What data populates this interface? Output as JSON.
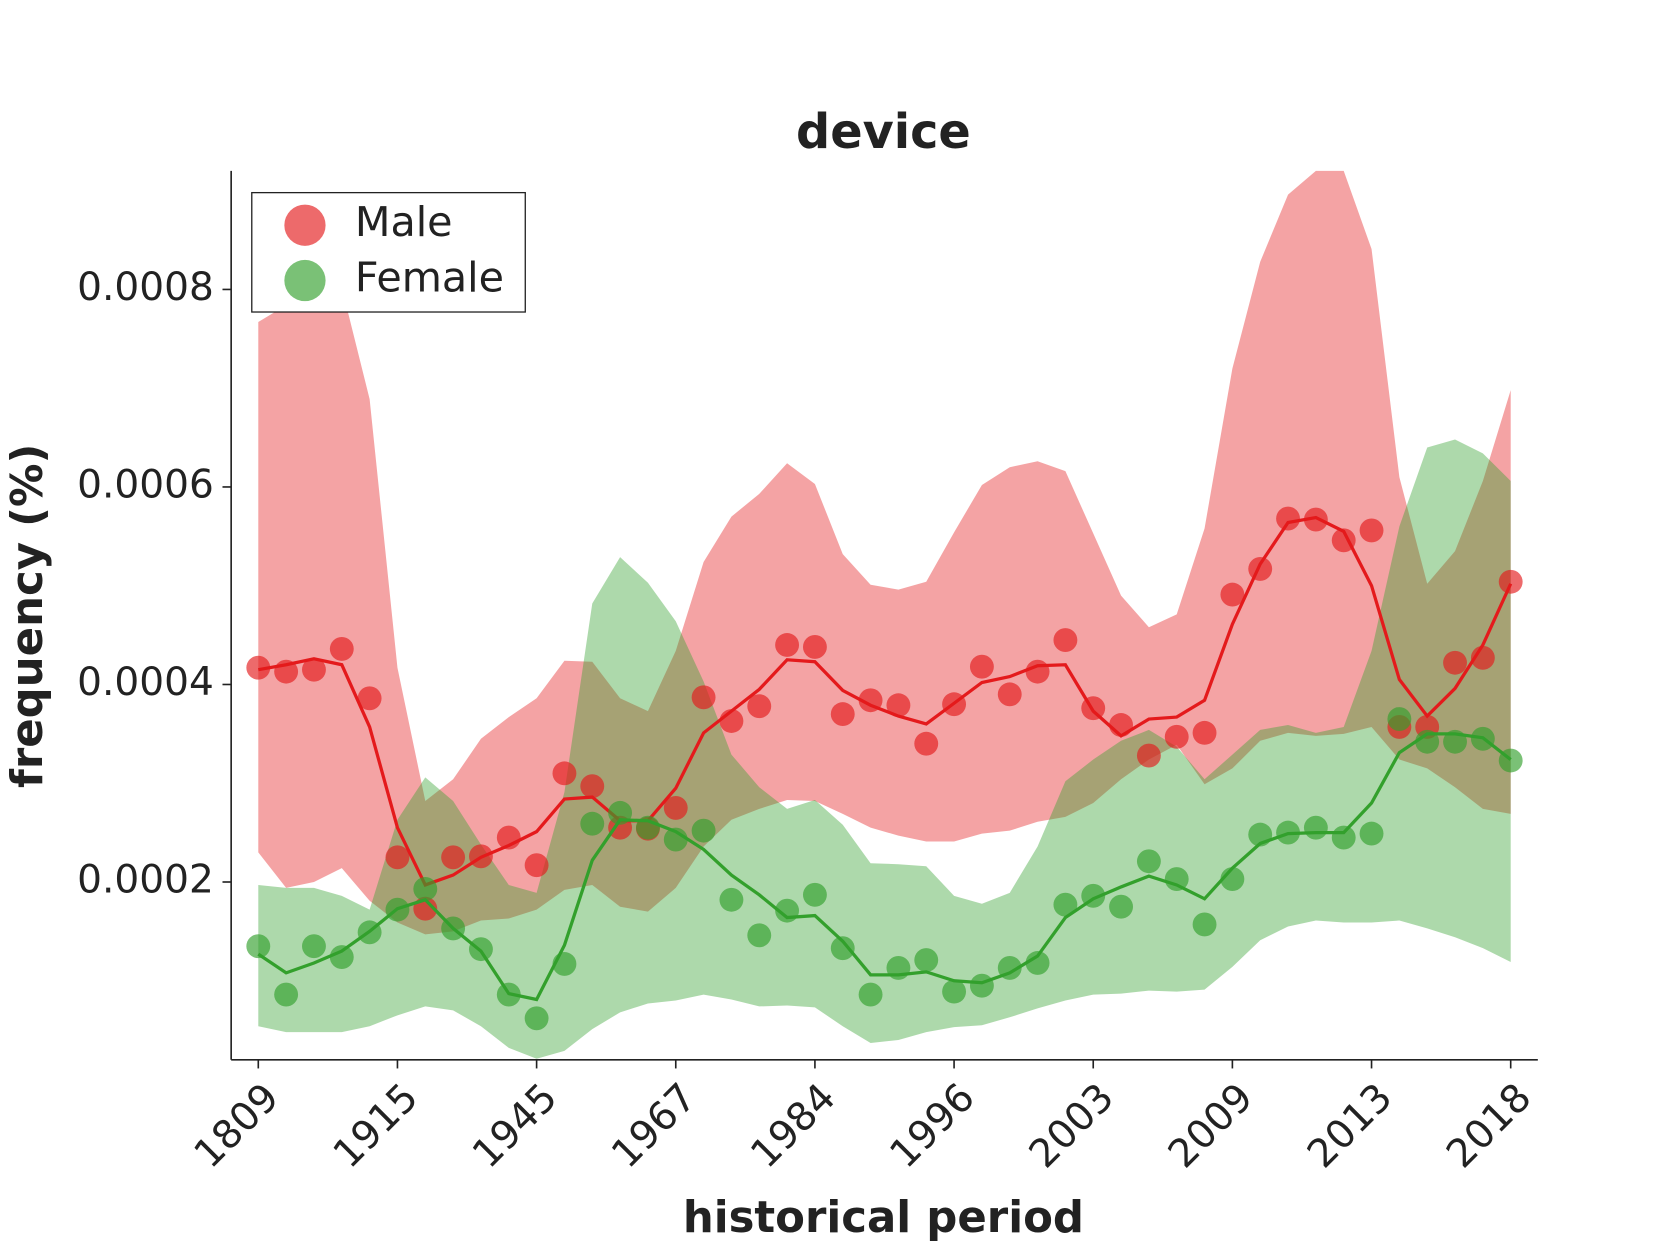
{
  "chart_data": {
    "type": "line",
    "title": "device",
    "xlabel": "historical period",
    "ylabel": "frequency (%)",
    "categories": [
      "1809",
      null,
      null,
      null,
      null,
      "1915",
      null,
      null,
      null,
      null,
      "1945",
      null,
      null,
      null,
      null,
      "1967",
      null,
      null,
      null,
      null,
      "1984",
      null,
      null,
      null,
      null,
      "1996",
      null,
      null,
      null,
      null,
      "2003",
      null,
      null,
      null,
      null,
      "2009",
      null,
      null,
      null,
      null,
      "2013",
      null,
      null,
      null,
      null,
      "2018"
    ],
    "ylim": [
      2e-05,
      0.00092
    ],
    "yticks": [
      0.0002,
      0.0004,
      0.0006,
      0.0008
    ],
    "legend": "upper left",
    "series": [
      {
        "name": "Male",
        "color": "#e41a1c",
        "values": [
          0.000417,
          0.000413,
          0.000415,
          0.000436,
          0.000386,
          0.000225,
          0.000173,
          0.000225,
          0.000226,
          0.000245,
          0.000217,
          0.00031,
          0.000297,
          0.000255,
          0.000254,
          0.000275,
          0.000387,
          0.000363,
          0.000378,
          0.00044,
          0.000438,
          0.00037,
          0.000384,
          0.000379,
          0.00034,
          0.00038,
          0.000418,
          0.00039,
          0.000413,
          0.000445,
          0.000376,
          0.000359,
          0.000328,
          0.000347,
          0.000351,
          0.000491,
          0.000517,
          0.000568,
          0.000567,
          0.000546,
          0.000556,
          0.000357,
          0.000357,
          0.000422,
          0.000427,
          0.000504
        ],
        "trend": [
          0.000415,
          0.00042,
          0.000426,
          0.00042,
          0.000357,
          0.000255,
          0.000197,
          0.000207,
          0.000225,
          0.000237,
          0.000251,
          0.000284,
          0.000286,
          0.000262,
          0.000262,
          0.000295,
          0.000351,
          0.000373,
          0.000395,
          0.000425,
          0.000423,
          0.000394,
          0.000379,
          0.000368,
          0.00036,
          0.000381,
          0.000402,
          0.000408,
          0.000419,
          0.00042,
          0.000373,
          0.000348,
          0.000365,
          0.000367,
          0.000384,
          0.000461,
          0.000522,
          0.000564,
          0.000569,
          0.000555,
          0.0005,
          0.000405,
          0.000368,
          0.000396,
          0.00044,
          0.000502
        ],
        "band_upper": [
          0.000767,
          0.000784,
          0.000795,
          0.000802,
          0.000689,
          0.000417,
          0.000282,
          0.000304,
          0.000345,
          0.000367,
          0.000386,
          0.000424,
          0.000423,
          0.000386,
          0.000373,
          0.000434,
          0.000524,
          0.00057,
          0.000593,
          0.000624,
          0.000603,
          0.000532,
          0.000501,
          0.000496,
          0.000504,
          0.000554,
          0.000602,
          0.00062,
          0.000626,
          0.000616,
          0.000553,
          0.00049,
          0.000458,
          0.000471,
          0.000558,
          0.00072,
          0.000828,
          0.000896,
          0.00092,
          0.00092,
          0.000841,
          0.00061,
          0.000502,
          0.000535,
          0.000606,
          0.000698
        ],
        "band_lower": [
          0.00023,
          0.000194,
          0.0002,
          0.000214,
          0.000181,
          0.000159,
          0.000147,
          0.00015,
          0.000161,
          0.000163,
          0.000172,
          0.000192,
          0.000197,
          0.000175,
          0.00017,
          0.000194,
          0.000236,
          0.000263,
          0.000274,
          0.000283,
          0.000282,
          0.000269,
          0.000255,
          0.000247,
          0.000241,
          0.000241,
          0.000249,
          0.000252,
          0.000261,
          0.000266,
          0.00028,
          0.000304,
          0.000324,
          0.000339,
          0.000299,
          0.000315,
          0.000343,
          0.000351,
          0.000348,
          0.00035,
          0.000357,
          0.000324,
          0.000315,
          0.000296,
          0.000274,
          0.000269
        ]
      },
      {
        "name": "Female",
        "color": "#33a02c",
        "values": [
          0.000135,
          8.6e-05,
          0.000135,
          0.000124,
          0.000149,
          0.000172,
          0.000193,
          0.000153,
          0.000132,
          8.6e-05,
          6.2e-05,
          0.000117,
          0.000259,
          0.00027,
          0.000255,
          0.000243,
          0.000252,
          0.000182,
          0.000146,
          0.000171,
          0.000187,
          0.000133,
          8.6e-05,
          0.000113,
          0.000121,
          8.9e-05,
          9.5e-05,
          0.000113,
          0.000118,
          0.000177,
          0.000186,
          0.000175,
          0.000221,
          0.000203,
          0.000157,
          0.000203,
          0.000248,
          0.00025,
          0.000255,
          0.000245,
          0.000249,
          0.000365,
          0.000342,
          0.000342,
          0.000345,
          0.000323
        ],
        "trend": [
          0.000127,
          0.000108,
          0.000118,
          0.00013,
          0.00015,
          0.000173,
          0.000182,
          0.000153,
          0.00013,
          8.7e-05,
          8.1e-05,
          0.000136,
          0.000222,
          0.000263,
          0.000262,
          0.000251,
          0.000233,
          0.000207,
          0.000187,
          0.000164,
          0.000166,
          0.00014,
          0.000106,
          0.000106,
          0.000109,
          0.0001,
          9.8e-05,
          0.000108,
          0.000125,
          0.000164,
          0.000183,
          0.000195,
          0.000206,
          0.000197,
          0.000183,
          0.000214,
          0.000239,
          0.000249,
          0.00025,
          0.00025,
          0.00028,
          0.000331,
          0.00035,
          0.00035,
          0.000346,
          0.000324
        ],
        "band_upper": [
          0.000197,
          0.000194,
          0.000194,
          0.000186,
          0.000172,
          0.000263,
          0.000306,
          0.000282,
          0.000238,
          0.000197,
          0.000189,
          0.000291,
          0.000482,
          0.000529,
          0.000503,
          0.000464,
          0.000403,
          0.000329,
          0.000296,
          0.000274,
          0.000283,
          0.000258,
          0.000219,
          0.000218,
          0.000216,
          0.000186,
          0.000178,
          0.000189,
          0.000236,
          0.000302,
          0.000324,
          0.000343,
          0.000354,
          0.000337,
          0.000304,
          0.000329,
          0.000354,
          0.000359,
          0.000351,
          0.000357,
          0.000434,
          0.00056,
          0.00064,
          0.000648,
          0.000634,
          0.000606
        ],
        "band_lower": [
          5.4e-05,
          4.8e-05,
          4.8e-05,
          4.8e-05,
          5.4e-05,
          6.5e-05,
          7.4e-05,
          7e-05,
          5.4e-05,
          3.2e-05,
          2.1e-05,
          2.9e-05,
          5.1e-05,
          6.8e-05,
          7.7e-05,
          8e-05,
          8.6e-05,
          8.1e-05,
          7.4e-05,
          7.5e-05,
          7.3e-05,
          5.4e-05,
          3.7e-05,
          4e-05,
          4.8e-05,
          5.3e-05,
          5.5e-05,
          6.3e-05,
          7.2e-05,
          8e-05,
          8.6e-05,
          8.7e-05,
          9e-05,
          8.9e-05,
          9.1e-05,
          0.000114,
          0.000141,
          0.000155,
          0.000161,
          0.000159,
          0.000159,
          0.000161,
          0.000153,
          0.000144,
          0.000133,
          0.000119
        ]
      }
    ]
  }
}
